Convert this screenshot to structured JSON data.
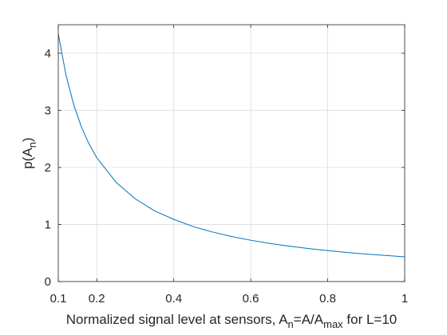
{
  "chart_data": {
    "type": "line",
    "title": "",
    "xlabel": {
      "parts": [
        {
          "text": "Normalized signal level at sensors, A",
          "sub": false
        },
        {
          "text": "n",
          "sub": true
        },
        {
          "text": "=A/A",
          "sub": false
        },
        {
          "text": "max",
          "sub": true
        },
        {
          "text": " for L=10",
          "sub": false
        }
      ]
    },
    "ylabel": {
      "parts": [
        {
          "text": "p(A",
          "sub": false
        },
        {
          "text": "n",
          "sub": true
        },
        {
          "text": ")",
          "sub": false
        }
      ]
    },
    "xlim": [
      0.1,
      1
    ],
    "ylim": [
      0,
      4.5
    ],
    "xticks": [
      0.1,
      0.2,
      0.4,
      0.6,
      0.8,
      1
    ],
    "xtick_labels": [
      "0.1",
      "0.2",
      "0.4",
      "0.6",
      "0.8",
      "1"
    ],
    "yticks": [
      0,
      1,
      2,
      3,
      4
    ],
    "ytick_labels": [
      "0",
      "1",
      "2",
      "3",
      "4"
    ],
    "grid": true,
    "box": true,
    "series": [
      {
        "color": "#0072BD",
        "x": [
          0.1,
          0.12,
          0.14,
          0.16,
          0.18,
          0.2,
          0.25,
          0.3,
          0.35,
          0.4,
          0.45,
          0.5,
          0.55,
          0.6,
          0.65,
          0.7,
          0.75,
          0.8,
          0.85,
          0.9,
          0.95,
          1.0
        ],
        "y": [
          4.34,
          3.62,
          3.1,
          2.71,
          2.41,
          2.17,
          1.74,
          1.45,
          1.24,
          1.09,
          0.965,
          0.869,
          0.79,
          0.724,
          0.668,
          0.62,
          0.579,
          0.543,
          0.511,
          0.483,
          0.457,
          0.434
        ]
      }
    ]
  }
}
